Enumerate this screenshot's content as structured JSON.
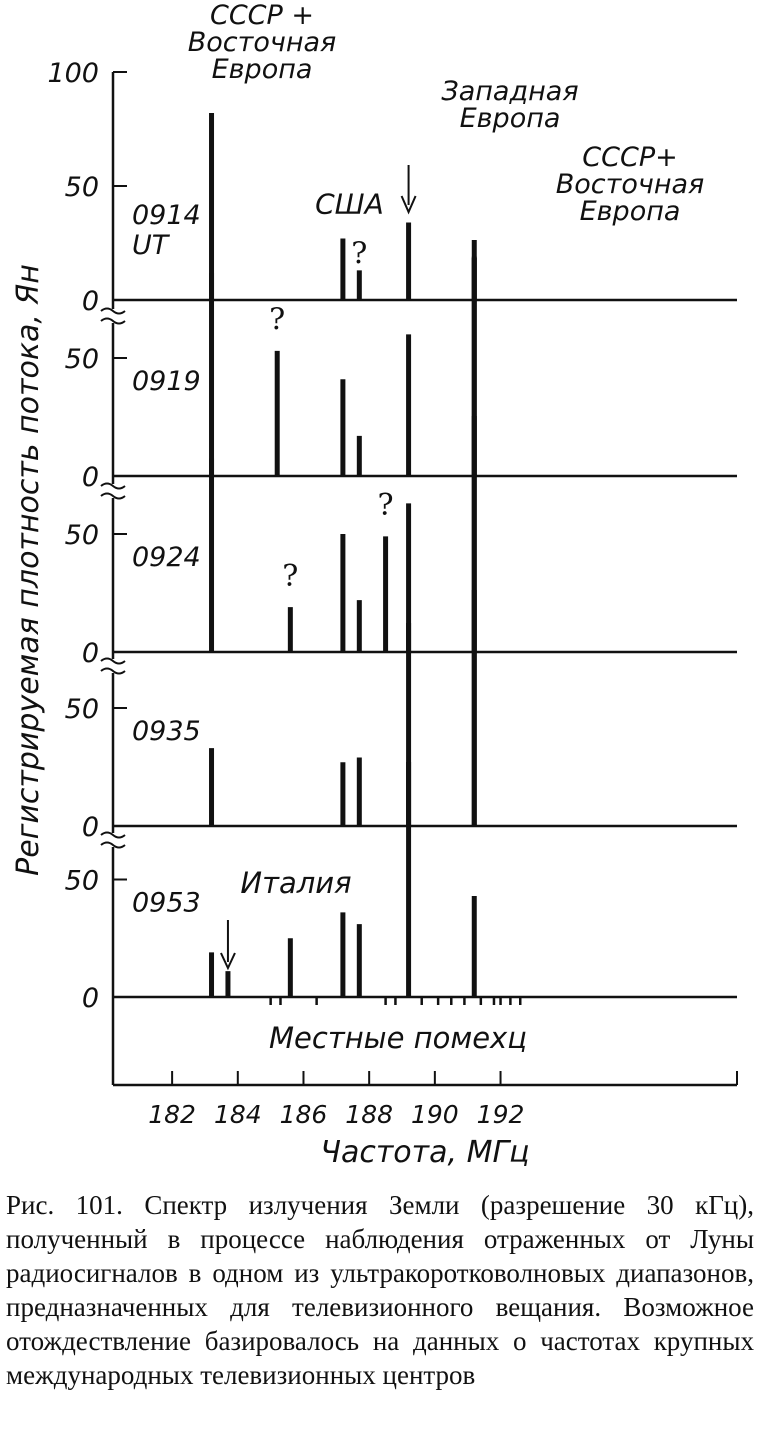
{
  "chart_data": {
    "type": "bar",
    "title": "",
    "xlabel": "Частота, МГц",
    "ylabel": "Регистрируемая плотность потока, Ян",
    "xlim": [
      180.2,
      199.2
    ],
    "x_ticks": [
      182,
      184,
      186,
      188,
      190,
      192
    ],
    "panels": [
      {
        "label": "0914\nUT",
        "y_ticks": [
          "0",
          "50",
          "100"
        ],
        "ylim": [
          0,
          100
        ],
        "lines": [
          {
            "x": 183.2,
            "y": 82
          },
          {
            "x": 187.2,
            "y": 27
          },
          {
            "x": 187.7,
            "y": 13
          },
          {
            "x": 189.2,
            "y": 34
          },
          {
            "x": 191.2,
            "y": 19
          }
        ],
        "marks": [
          {
            "text": "?",
            "x": 187.7,
            "y": 16
          },
          {
            "text": "США",
            "x": 187.4,
            "y": 38
          }
        ]
      },
      {
        "label": "0919",
        "y_ticks": [
          "0",
          "50"
        ],
        "ylim": [
          0,
          100
        ],
        "lines": [
          {
            "x": 183.2,
            "y": 86
          },
          {
            "x": 185.2,
            "y": 53
          },
          {
            "x": 187.2,
            "y": 41
          },
          {
            "x": 187.7,
            "y": 17
          },
          {
            "x": 189.2,
            "y": 60
          },
          {
            "x": 191.2,
            "y": 100
          }
        ],
        "marks": [
          {
            "text": "?",
            "x": 185.2,
            "y": 62
          }
        ]
      },
      {
        "label": "0924",
        "y_ticks": [
          "0",
          "50"
        ],
        "ylim": [
          0,
          100
        ],
        "lines": [
          {
            "x": 183.2,
            "y": 82
          },
          {
            "x": 185.6,
            "y": 19
          },
          {
            "x": 187.2,
            "y": 50
          },
          {
            "x": 187.7,
            "y": 22
          },
          {
            "x": 188.5,
            "y": 49
          },
          {
            "x": 189.2,
            "y": 63
          },
          {
            "x": 191.2,
            "y": 100
          }
        ],
        "marks": [
          {
            "text": "?",
            "x": 185.6,
            "y": 28
          },
          {
            "text": "?",
            "x": 188.5,
            "y": 58
          }
        ]
      },
      {
        "label": "0935",
        "y_ticks": [
          "0",
          "50"
        ],
        "ylim": [
          0,
          100
        ],
        "lines": [
          {
            "x": 183.2,
            "y": 33
          },
          {
            "x": 187.2,
            "y": 27
          },
          {
            "x": 187.7,
            "y": 29
          },
          {
            "x": 189.2,
            "y": 86
          },
          {
            "x": 191.2,
            "y": 100
          }
        ],
        "marks": []
      },
      {
        "label": "0953",
        "y_ticks": [
          "0",
          "50"
        ],
        "ylim": [
          0,
          100
        ],
        "lines": [
          {
            "x": 183.2,
            "y": 19
          },
          {
            "x": 183.7,
            "y": 11
          },
          {
            "x": 185.6,
            "y": 25
          },
          {
            "x": 187.2,
            "y": 36
          },
          {
            "x": 187.7,
            "y": 31
          },
          {
            "x": 189.2,
            "y": 100
          },
          {
            "x": 191.2,
            "y": 43
          }
        ],
        "marks": []
      }
    ],
    "annotations": [
      {
        "text": "СССР +\nВосточная\nЕвропа"
      },
      {
        "text": "Западная\nЕвропа"
      },
      {
        "text": "СССР+\nВосточная\nЕвропа"
      },
      {
        "text": "Италия"
      },
      {
        "text": "Местные помехц"
      }
    ],
    "local_noise_x": [
      185.0,
      185.3,
      186.4,
      188.5,
      188.8,
      189.6,
      190.1,
      190.5,
      190.9,
      191.4,
      191.8,
      192.0,
      192.3,
      192.6
    ]
  },
  "caption": "Рис. 101. Спектр излучения Земли (разрешение 30 кГц), полученный в процессе наблюдения отраженных от Луны радиосигналов в одном из ультракоротковолновых диапазонов, предназначенных для телевизионного вещания. Возможное отождествление базировалось на данных о частотах крупных международных телевизионных центров"
}
